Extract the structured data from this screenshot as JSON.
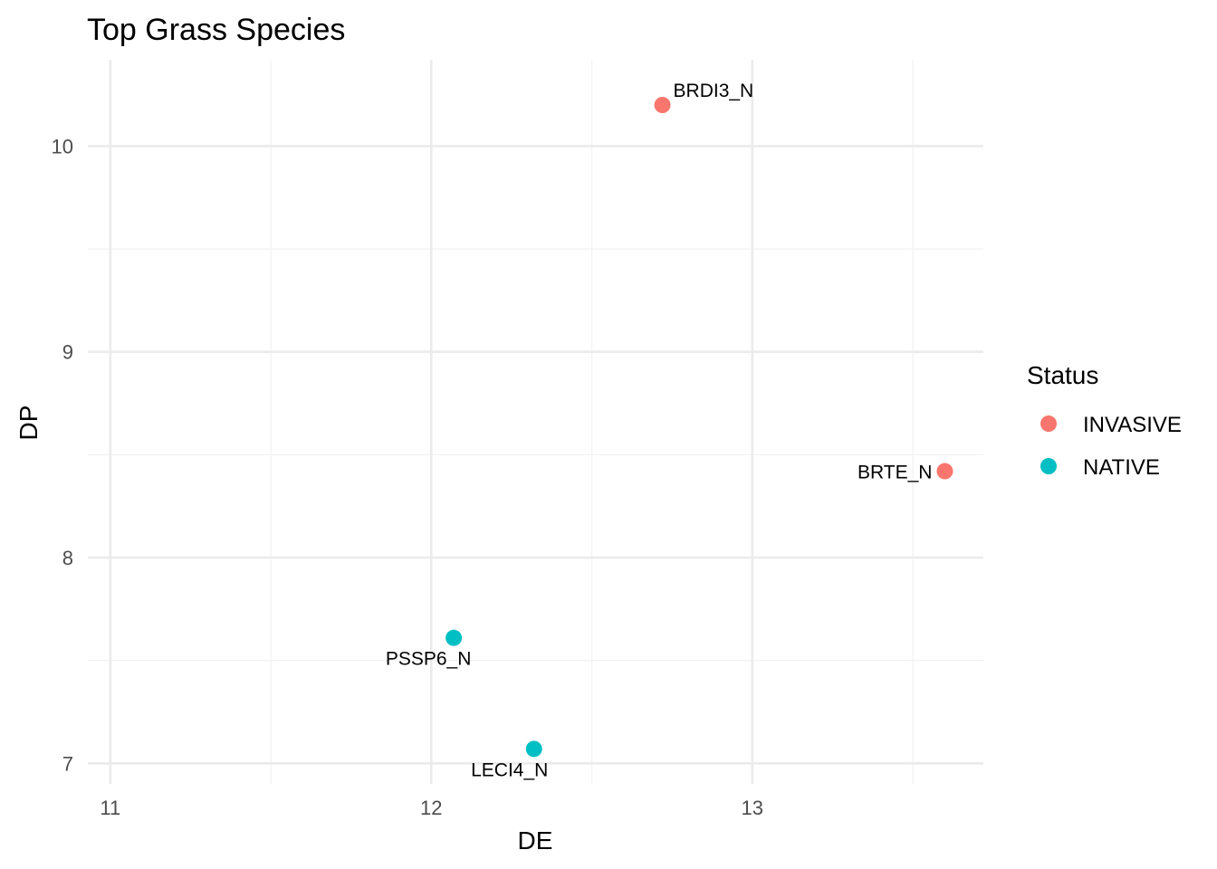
{
  "chart_data": {
    "type": "scatter",
    "title": "Top Grass Species",
    "xlabel": "DE",
    "ylabel": "DP",
    "xlim": [
      10.93,
      13.72
    ],
    "ylim": [
      6.9,
      10.42
    ],
    "x_ticks": [
      11,
      12,
      13
    ],
    "y_ticks": [
      7,
      8,
      9,
      10
    ],
    "x_minor": [
      11.5,
      12.5,
      13.5
    ],
    "y_minor": [
      7.5,
      8.5,
      9.5
    ],
    "grid": true,
    "legend": {
      "title": "Status",
      "placement": "right",
      "entries": [
        {
          "label": "INVASIVE",
          "color": "#F8766D"
        },
        {
          "label": "NATIVE",
          "color": "#00BFC4"
        }
      ]
    },
    "points": [
      {
        "label": "BRDI3_N",
        "x": 12.72,
        "y": 10.2,
        "status": "INVASIVE",
        "label_pos": "top-right"
      },
      {
        "label": "BRTE_N",
        "x": 13.6,
        "y": 8.42,
        "status": "INVASIVE",
        "label_pos": "left"
      },
      {
        "label": "PSSP6_N",
        "x": 12.07,
        "y": 7.61,
        "status": "NATIVE",
        "label_pos": "bottom-left"
      },
      {
        "label": "LECI4_N",
        "x": 12.32,
        "y": 7.07,
        "status": "NATIVE",
        "label_pos": "bottom"
      }
    ]
  }
}
